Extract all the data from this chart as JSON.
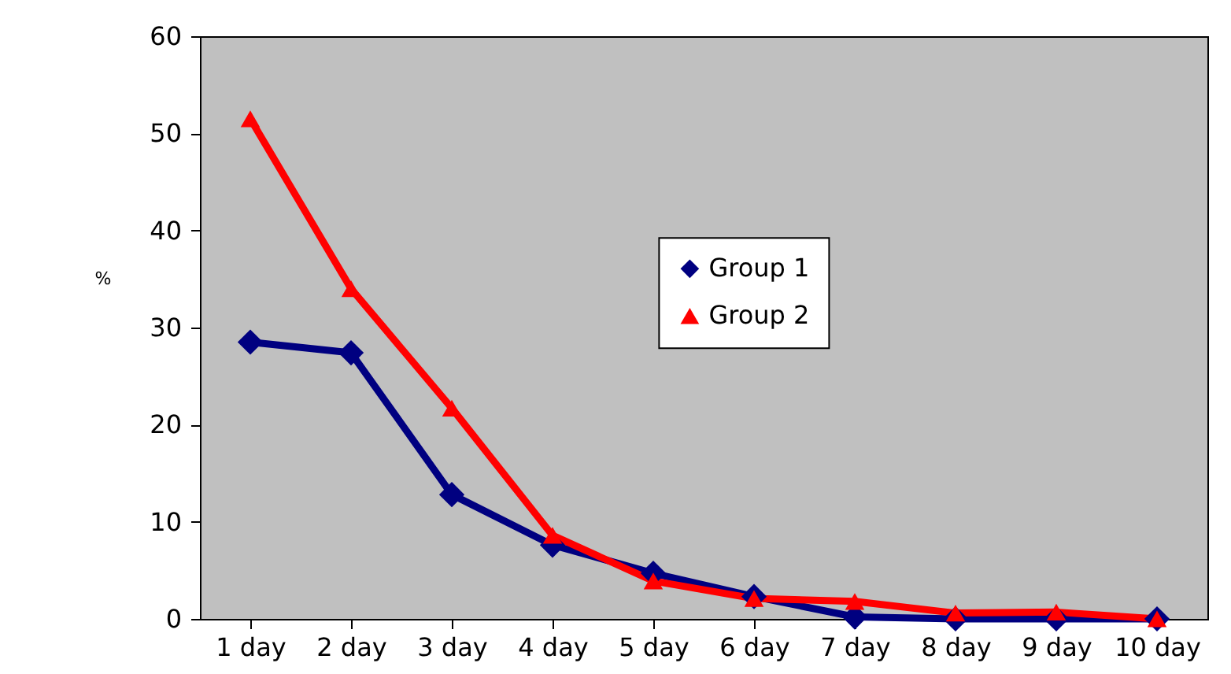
{
  "chart_data": {
    "type": "line",
    "ylabel": "%",
    "categories": [
      "1 day",
      "2 day",
      "3 day",
      "4 day",
      "5 day",
      "6 day",
      "7 day",
      "8 day",
      "9 day",
      "10 day"
    ],
    "series": [
      {
        "name": "Group 1",
        "color": "#000080",
        "marker": "diamond",
        "values": [
          28.5,
          27.4,
          12.8,
          7.6,
          4.7,
          2.3,
          0.2,
          0,
          0,
          0
        ]
      },
      {
        "name": "Group 2",
        "color": "#ff0000",
        "marker": "triangle",
        "values": [
          51.5,
          34,
          21.7,
          8.6,
          3.9,
          2.1,
          1.8,
          0.6,
          0.7,
          0
        ]
      }
    ],
    "ylim": [
      0,
      60
    ],
    "yticks": [
      0,
      10,
      20,
      30,
      40,
      50,
      60
    ],
    "grid": false,
    "legend": "center"
  }
}
